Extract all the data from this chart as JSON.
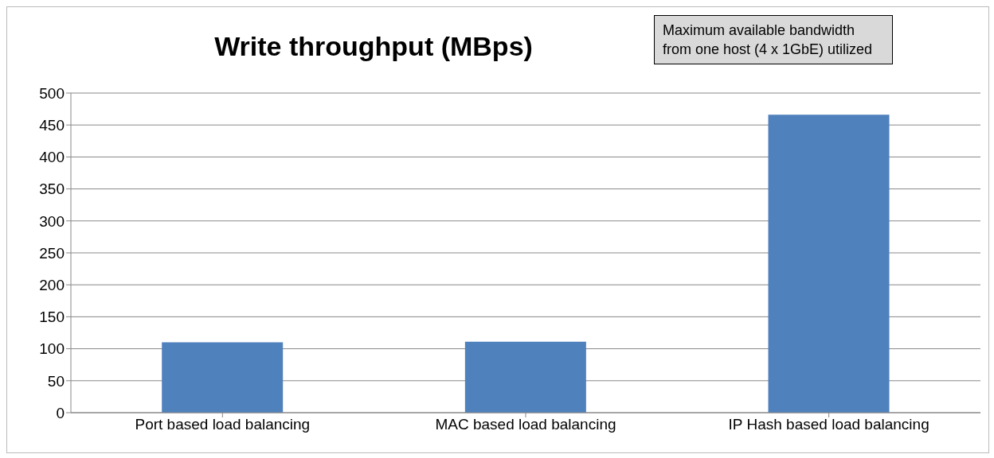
{
  "chart_data": {
    "type": "bar",
    "title": "Write throughput (MBps)",
    "categories": [
      "Port based load balancing",
      "MAC based load balancing",
      "IP Hash based load balancing"
    ],
    "values": [
      110,
      111,
      466
    ],
    "color": "#4f81bd",
    "ylim": [
      0,
      500
    ],
    "yticks": [
      0,
      50,
      100,
      150,
      200,
      250,
      300,
      350,
      400,
      450,
      500
    ],
    "grid": "y",
    "annotations": [
      "Maximum available bandwidth from one host (4 x 1GbE) utilized"
    ]
  }
}
